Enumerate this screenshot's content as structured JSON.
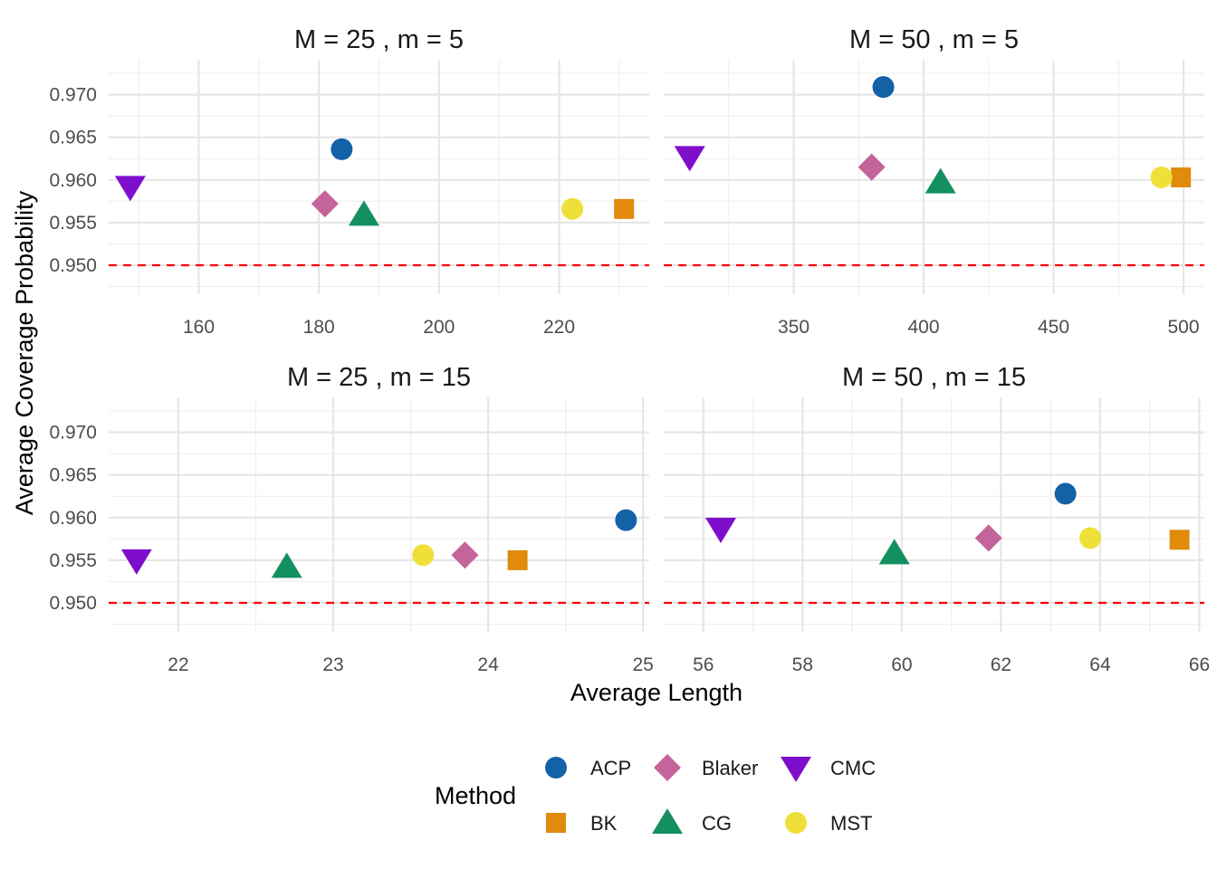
{
  "chart_data": {
    "type": "scatter",
    "xlabel": "Average Length",
    "ylabel": "Average Coverage Probability",
    "legend": {
      "title": "Method",
      "placement": "bottom",
      "items": [
        {
          "name": "ACP",
          "shape": "circle",
          "color": "#1361A7"
        },
        {
          "name": "Blaker",
          "shape": "diamond",
          "color": "#C4649A"
        },
        {
          "name": "CMC",
          "shape": "triangle-down",
          "color": "#7F0ECC"
        },
        {
          "name": "BK",
          "shape": "square",
          "color": "#E08B0C"
        },
        {
          "name": "CG",
          "shape": "triangle-up",
          "color": "#148F60"
        },
        {
          "name": "MST",
          "shape": "circle",
          "color": "#EFE039"
        }
      ]
    },
    "reference_line": {
      "y": 0.95,
      "style": "dashed",
      "color": "#FF0000"
    },
    "y_ticks": [
      0.95,
      0.955,
      0.96,
      0.965,
      0.97
    ],
    "y_tick_labels": [
      "0.950",
      "0.955",
      "0.960",
      "0.965",
      "0.970"
    ],
    "ylim": [
      0.9466,
      0.9741
    ],
    "grid": true,
    "facets": [
      {
        "title": "M = 25 , m = 5",
        "xlim": [
          145,
          235
        ],
        "x_ticks": [
          160,
          180,
          200,
          220
        ],
        "x_tick_labels": [
          "160",
          "180",
          "200",
          "220"
        ],
        "points": [
          {
            "method": "ACP",
            "x": 183.8,
            "y": 0.9636
          },
          {
            "method": "Blaker",
            "x": 181.0,
            "y": 0.9572
          },
          {
            "method": "CMC",
            "x": 148.6,
            "y": 0.9592
          },
          {
            "method": "BK",
            "x": 230.8,
            "y": 0.9566
          },
          {
            "method": "CG",
            "x": 187.5,
            "y": 0.9559
          },
          {
            "method": "MST",
            "x": 222.2,
            "y": 0.9566
          }
        ]
      },
      {
        "title": "M = 50 , m = 5",
        "xlim": [
          300,
          508
        ],
        "x_ticks": [
          350,
          400,
          450,
          500
        ],
        "x_tick_labels": [
          "350",
          "400",
          "450",
          "500"
        ],
        "points": [
          {
            "method": "ACP",
            "x": 384.5,
            "y": 0.9709
          },
          {
            "method": "Blaker",
            "x": 380.0,
            "y": 0.9615
          },
          {
            "method": "CMC",
            "x": 310.0,
            "y": 0.9627
          },
          {
            "method": "BK",
            "x": 499.0,
            "y": 0.9603
          },
          {
            "method": "CG",
            "x": 406.5,
            "y": 0.9597
          },
          {
            "method": "MST",
            "x": 491.5,
            "y": 0.9603
          }
        ]
      },
      {
        "title": "M = 25 , m = 15",
        "xlim": [
          21.55,
          25.04
        ],
        "x_ticks": [
          22,
          23,
          24,
          25
        ],
        "x_tick_labels": [
          "22",
          "23",
          "24",
          "25"
        ],
        "points": [
          {
            "method": "ACP",
            "x": 24.89,
            "y": 0.9597
          },
          {
            "method": "Blaker",
            "x": 23.85,
            "y": 0.9556
          },
          {
            "method": "CMC",
            "x": 21.73,
            "y": 0.955
          },
          {
            "method": "BK",
            "x": 24.19,
            "y": 0.955
          },
          {
            "method": "CG",
            "x": 22.7,
            "y": 0.9542
          },
          {
            "method": "MST",
            "x": 23.58,
            "y": 0.9556
          }
        ]
      },
      {
        "title": "M = 50 , m = 15",
        "xlim": [
          55.2,
          66.1
        ],
        "x_ticks": [
          56,
          58,
          60,
          62,
          64,
          66
        ],
        "x_tick_labels": [
          "56",
          "58",
          "60",
          "62",
          "64",
          "66"
        ],
        "points": [
          {
            "method": "ACP",
            "x": 63.3,
            "y": 0.9628
          },
          {
            "method": "Blaker",
            "x": 61.75,
            "y": 0.9576
          },
          {
            "method": "CMC",
            "x": 56.35,
            "y": 0.9587
          },
          {
            "method": "BK",
            "x": 65.6,
            "y": 0.9574
          },
          {
            "method": "CG",
            "x": 59.85,
            "y": 0.9558
          },
          {
            "method": "MST",
            "x": 63.8,
            "y": 0.9576
          }
        ]
      }
    ]
  }
}
